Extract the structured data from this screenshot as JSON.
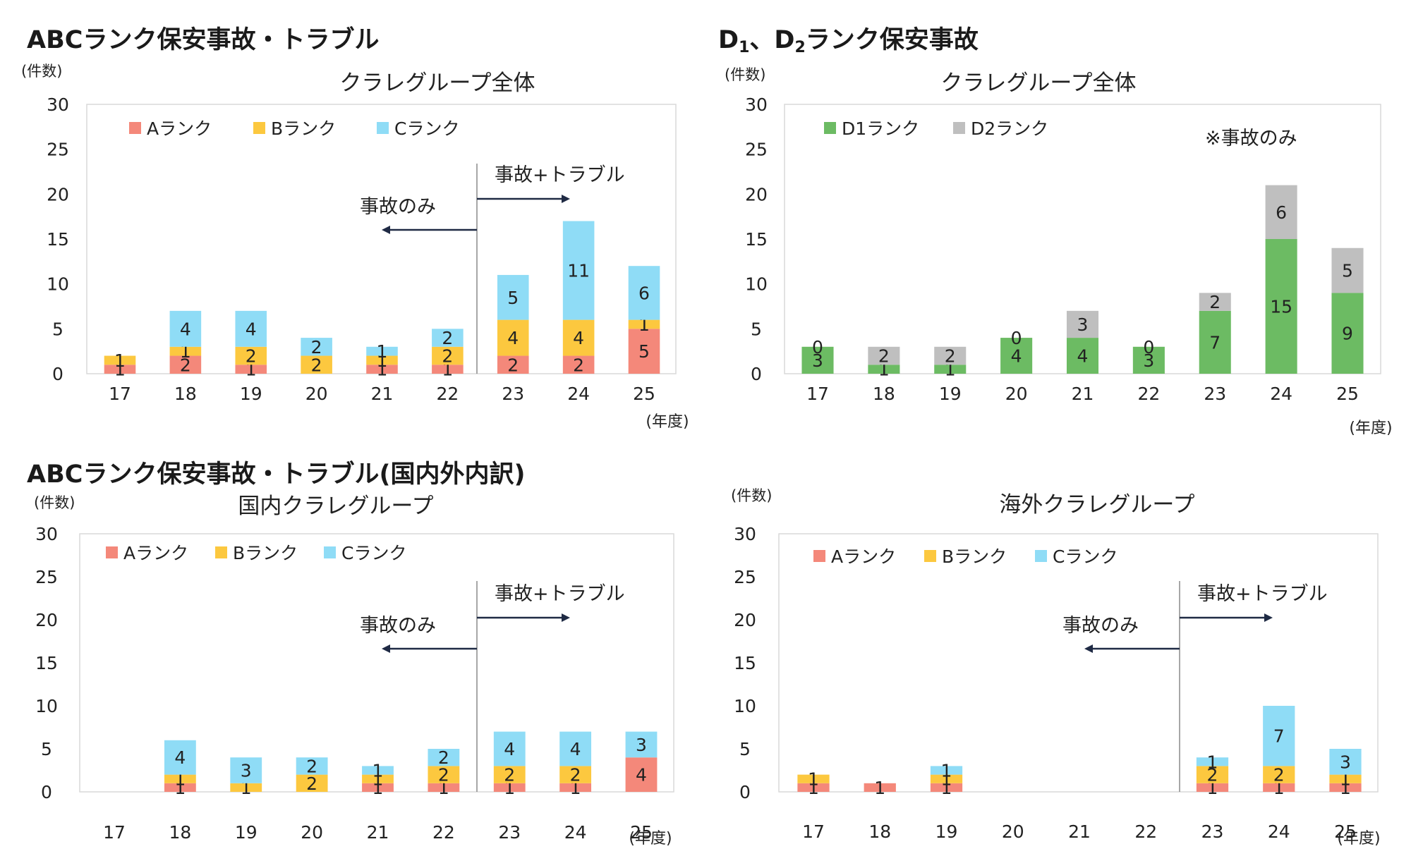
{
  "headings": {
    "top_left": "ABCランク保安事故・トラブル",
    "top_right_prefix": "D",
    "top_right_sub1": "1",
    "top_right_mid": "、D",
    "top_right_sub2": "2",
    "top_right_suffix": "ランク保安事故",
    "bottom_left": "ABCランク保安事故・トラブル(国内外内訳)"
  },
  "colors": {
    "A": "#f4887a",
    "B": "#fcc83f",
    "C": "#8fdcf6",
    "D1": "#6cbb63",
    "D2": "#bfbfbf",
    "grid": "#d9d9d9",
    "arrow": "#1f2a44"
  },
  "chart_data": [
    {
      "type": "bar",
      "stacked": true,
      "title": "クラレグループ全体",
      "ylabel": "(件数)",
      "xlabel": "(年度)",
      "ylim": [
        0,
        30
      ],
      "yticks": [
        0,
        5,
        10,
        15,
        20,
        25,
        30
      ],
      "categories": [
        "17",
        "18",
        "19",
        "20",
        "21",
        "22",
        "23",
        "24",
        "25"
      ],
      "series": [
        {
          "name": "Aランク",
          "color_key": "A",
          "values": [
            1,
            2,
            1,
            0,
            1,
            1,
            2,
            2,
            5
          ],
          "labels": [
            "1",
            "2",
            "1",
            "",
            "1",
            "1",
            "2",
            "2",
            "5"
          ]
        },
        {
          "name": "Bランク",
          "color_key": "B",
          "values": [
            1,
            1,
            2,
            2,
            1,
            2,
            4,
            4,
            1
          ],
          "labels": [
            "1",
            "1",
            "2",
            "2",
            "1",
            "2",
            "4",
            "4",
            "1"
          ]
        },
        {
          "name": "Cランク",
          "color_key": "C",
          "values": [
            0,
            4,
            4,
            2,
            1,
            2,
            5,
            11,
            6
          ],
          "labels": [
            "",
            "4",
            "4",
            "2",
            "1",
            "2",
            "5",
            "11",
            "6"
          ]
        }
      ],
      "annotations": {
        "divider_after_category": "22",
        "left_label": "事故のみ",
        "right_label": "事故+トラブル"
      },
      "legend_position": "top"
    },
    {
      "type": "bar",
      "stacked": true,
      "title": "クラレグループ全体",
      "ylabel": "(件数)",
      "xlabel": "(年度)",
      "ylim": [
        0,
        30
      ],
      "yticks": [
        0,
        5,
        10,
        15,
        20,
        25,
        30
      ],
      "categories": [
        "17",
        "18",
        "19",
        "20",
        "21",
        "22",
        "23",
        "24",
        "25"
      ],
      "series": [
        {
          "name": "D1ランク",
          "color_key": "D1",
          "values": [
            3,
            1,
            1,
            4,
            4,
            3,
            7,
            15,
            9
          ],
          "labels": [
            "3",
            "1",
            "1",
            "4",
            "4",
            "3",
            "7",
            "15",
            "9"
          ]
        },
        {
          "name": "D2ランク",
          "color_key": "D2",
          "values": [
            0,
            2,
            2,
            0,
            3,
            0,
            2,
            6,
            5
          ],
          "labels": [
            "0",
            "2",
            "2",
            "0",
            "3",
            "0",
            "2",
            "6",
            "5"
          ]
        }
      ],
      "note": "※事故のみ",
      "legend_position": "top"
    },
    {
      "type": "bar",
      "stacked": true,
      "title": "国内クラレグループ",
      "ylabel": "(件数)",
      "xlabel": "(年度)",
      "ylim": [
        0,
        30
      ],
      "yticks": [
        0,
        5,
        10,
        15,
        20,
        25,
        30
      ],
      "categories": [
        "17",
        "18",
        "19",
        "20",
        "21",
        "22",
        "23",
        "24",
        "25"
      ],
      "series": [
        {
          "name": "Aランク",
          "color_key": "A",
          "values": [
            0,
            1,
            0,
            0,
            1,
            1,
            1,
            1,
            4
          ],
          "labels": [
            "",
            "1",
            "",
            "",
            "1",
            "1",
            "1",
            "1",
            "4"
          ]
        },
        {
          "name": "Bランク",
          "color_key": "B",
          "values": [
            0,
            1,
            1,
            2,
            1,
            2,
            2,
            2,
            0
          ],
          "labels": [
            "",
            "1",
            "1",
            "2",
            "1",
            "2",
            "2",
            "2",
            ""
          ]
        },
        {
          "name": "Cランク",
          "color_key": "C",
          "values": [
            0,
            4,
            3,
            2,
            1,
            2,
            4,
            4,
            3
          ],
          "labels": [
            "",
            "4",
            "3",
            "2",
            "1",
            "2",
            "4",
            "4",
            "3"
          ]
        }
      ],
      "annotations": {
        "divider_after_category": "22",
        "left_label": "事故のみ",
        "right_label": "事故+トラブル"
      },
      "legend_position": "top"
    },
    {
      "type": "bar",
      "stacked": true,
      "title": "海外クラレグループ",
      "ylabel": "(件数)",
      "xlabel": "(年度)",
      "ylim": [
        0,
        30
      ],
      "yticks": [
        0,
        5,
        10,
        15,
        20,
        25,
        30
      ],
      "categories": [
        "17",
        "18",
        "19",
        "20",
        "21",
        "22",
        "23",
        "24",
        "25"
      ],
      "series": [
        {
          "name": "Aランク",
          "color_key": "A",
          "values": [
            1,
            1,
            1,
            0,
            0,
            0,
            1,
            1,
            1
          ],
          "labels": [
            "1",
            "1",
            "1",
            "",
            "",
            "",
            "1",
            "1",
            "1"
          ]
        },
        {
          "name": "Bランク",
          "color_key": "B",
          "values": [
            1,
            0,
            1,
            0,
            0,
            0,
            2,
            2,
            1
          ],
          "labels": [
            "1",
            "",
            "1",
            "",
            "",
            "",
            "2",
            "2",
            "1"
          ]
        },
        {
          "name": "Cランク",
          "color_key": "C",
          "values": [
            0,
            0,
            1,
            0,
            0,
            0,
            1,
            7,
            3
          ],
          "labels": [
            "",
            "",
            "1",
            "",
            "",
            "",
            "1",
            "7",
            "3"
          ]
        }
      ],
      "annotations": {
        "divider_after_category": "22",
        "left_label": "事故のみ",
        "right_label": "事故+トラブル"
      },
      "legend_position": "top"
    }
  ]
}
